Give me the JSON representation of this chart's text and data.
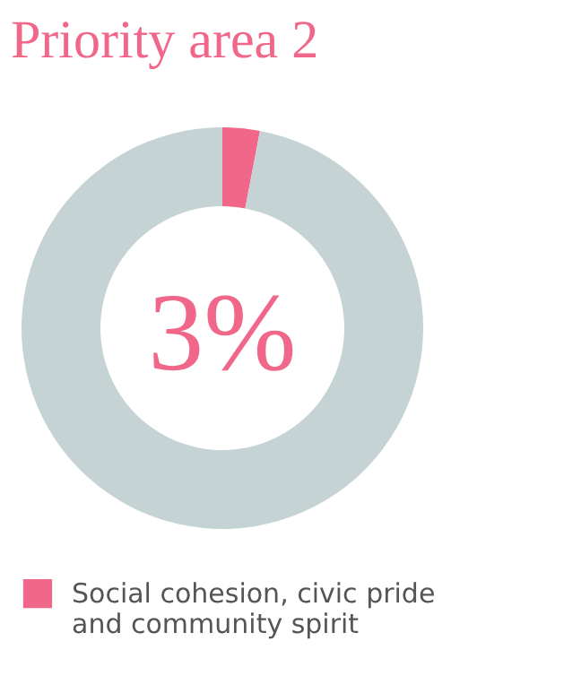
{
  "chart_data": {
    "type": "donut",
    "title": "Priority area 2",
    "categories": [
      "Social cohesion, civic pride and community spirit",
      null
    ],
    "values": [
      3,
      97
    ],
    "colors": [
      "#f0678a",
      "#c5d3d5"
    ],
    "annotations": [
      "3%"
    ],
    "legend": "bottom"
  }
}
